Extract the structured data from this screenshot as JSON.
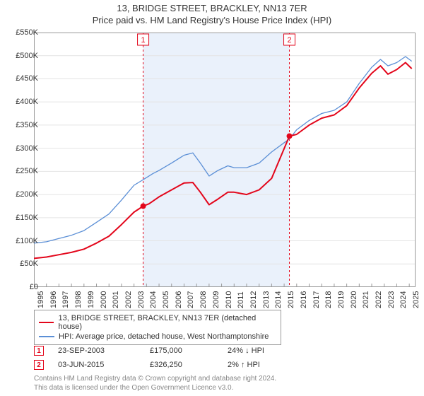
{
  "title": "13, BRIDGE STREET, BRACKLEY, NN13 7ER",
  "subtitle": "Price paid vs. HM Land Registry's House Price Index (HPI)",
  "chart": {
    "type": "line",
    "plot_bg": "#ffffff",
    "shade_bg": "#eaf1fb",
    "grid_color": "#e4e4e4",
    "axis_color": "#999999",
    "xlim": [
      1995,
      2025.5
    ],
    "ylim": [
      0,
      550000
    ],
    "ytick_step": 50000,
    "ytick_labels": [
      "£0",
      "£50K",
      "£100K",
      "£150K",
      "£200K",
      "£250K",
      "£300K",
      "£350K",
      "£400K",
      "£450K",
      "£500K",
      "£550K"
    ],
    "xticks": [
      1995,
      1996,
      1997,
      1998,
      1999,
      2000,
      2001,
      2002,
      2003,
      2004,
      2005,
      2006,
      2007,
      2008,
      2009,
      2010,
      2011,
      2012,
      2013,
      2014,
      2015,
      2016,
      2017,
      2018,
      2019,
      2020,
      2021,
      2022,
      2023,
      2024,
      2025
    ],
    "shade_start": 2003.73,
    "shade_end": 2015.42,
    "series": [
      {
        "id": "price-paid",
        "label": "13, BRIDGE STREET, BRACKLEY, NN13 7ER (detached house)",
        "color": "#e3061b",
        "width": 2,
        "data": [
          [
            1995,
            62000
          ],
          [
            1996,
            65000
          ],
          [
            1997,
            70000
          ],
          [
            1998,
            75000
          ],
          [
            1999,
            82000
          ],
          [
            2000,
            95000
          ],
          [
            2001,
            110000
          ],
          [
            2002,
            135000
          ],
          [
            2003,
            162000
          ],
          [
            2003.73,
            175000
          ],
          [
            2004.2,
            180000
          ],
          [
            2005,
            195000
          ],
          [
            2006,
            210000
          ],
          [
            2007,
            225000
          ],
          [
            2007.7,
            226000
          ],
          [
            2008.3,
            205000
          ],
          [
            2009,
            178000
          ],
          [
            2009.7,
            190000
          ],
          [
            2010.5,
            205000
          ],
          [
            2011,
            205000
          ],
          [
            2012,
            200000
          ],
          [
            2013,
            210000
          ],
          [
            2014,
            235000
          ],
          [
            2015.42,
            326250
          ],
          [
            2016,
            330000
          ],
          [
            2017,
            350000
          ],
          [
            2018,
            365000
          ],
          [
            2019,
            372000
          ],
          [
            2020,
            392000
          ],
          [
            2021,
            430000
          ],
          [
            2022,
            462000
          ],
          [
            2022.7,
            478000
          ],
          [
            2023.3,
            460000
          ],
          [
            2024,
            470000
          ],
          [
            2024.7,
            485000
          ],
          [
            2025.2,
            472000
          ]
        ]
      },
      {
        "id": "hpi",
        "label": "HPI: Average price, detached house, West Northamptonshire",
        "color": "#5b8fd6",
        "width": 1.3,
        "data": [
          [
            1995,
            95000
          ],
          [
            1996,
            98000
          ],
          [
            1997,
            105000
          ],
          [
            1998,
            112000
          ],
          [
            1999,
            122000
          ],
          [
            2000,
            140000
          ],
          [
            2001,
            158000
          ],
          [
            2002,
            188000
          ],
          [
            2003,
            220000
          ],
          [
            2003.73,
            232000
          ],
          [
            2004.5,
            245000
          ],
          [
            2005,
            252000
          ],
          [
            2006,
            268000
          ],
          [
            2007,
            285000
          ],
          [
            2007.7,
            290000
          ],
          [
            2008.3,
            268000
          ],
          [
            2009,
            240000
          ],
          [
            2009.7,
            252000
          ],
          [
            2010.5,
            262000
          ],
          [
            2011,
            258000
          ],
          [
            2012,
            258000
          ],
          [
            2013,
            268000
          ],
          [
            2014,
            292000
          ],
          [
            2015,
            312000
          ],
          [
            2015.42,
            320000
          ],
          [
            2016,
            340000
          ],
          [
            2017,
            360000
          ],
          [
            2018,
            375000
          ],
          [
            2019,
            382000
          ],
          [
            2020,
            400000
          ],
          [
            2021,
            440000
          ],
          [
            2022,
            475000
          ],
          [
            2022.7,
            492000
          ],
          [
            2023.3,
            478000
          ],
          [
            2024,
            485000
          ],
          [
            2024.7,
            498000
          ],
          [
            2025.2,
            488000
          ]
        ]
      }
    ],
    "event_markers": [
      {
        "n": "1",
        "x": 2003.73,
        "y": 175000,
        "color": "#e3061b"
      },
      {
        "n": "2",
        "x": 2015.42,
        "y": 326250,
        "color": "#e3061b"
      }
    ],
    "label_fontsize": 11
  },
  "legend": {
    "border_color": "#999999",
    "items": [
      {
        "color": "#e3061b",
        "label": "13, BRIDGE STREET, BRACKLEY, NN13 7ER (detached house)"
      },
      {
        "color": "#5b8fd6",
        "label": "HPI: Average price, detached house, West Northamptonshire"
      }
    ]
  },
  "events": [
    {
      "n": "1",
      "color": "#e3061b",
      "date": "23-SEP-2003",
      "price": "£175,000",
      "diff": "24% ↓ HPI"
    },
    {
      "n": "2",
      "color": "#e3061b",
      "date": "03-JUN-2015",
      "price": "£326,250",
      "diff": "2% ↑ HPI"
    }
  ],
  "footer_line1": "Contains HM Land Registry data © Crown copyright and database right 2024.",
  "footer_line2": "This data is licensed under the Open Government Licence v3.0."
}
